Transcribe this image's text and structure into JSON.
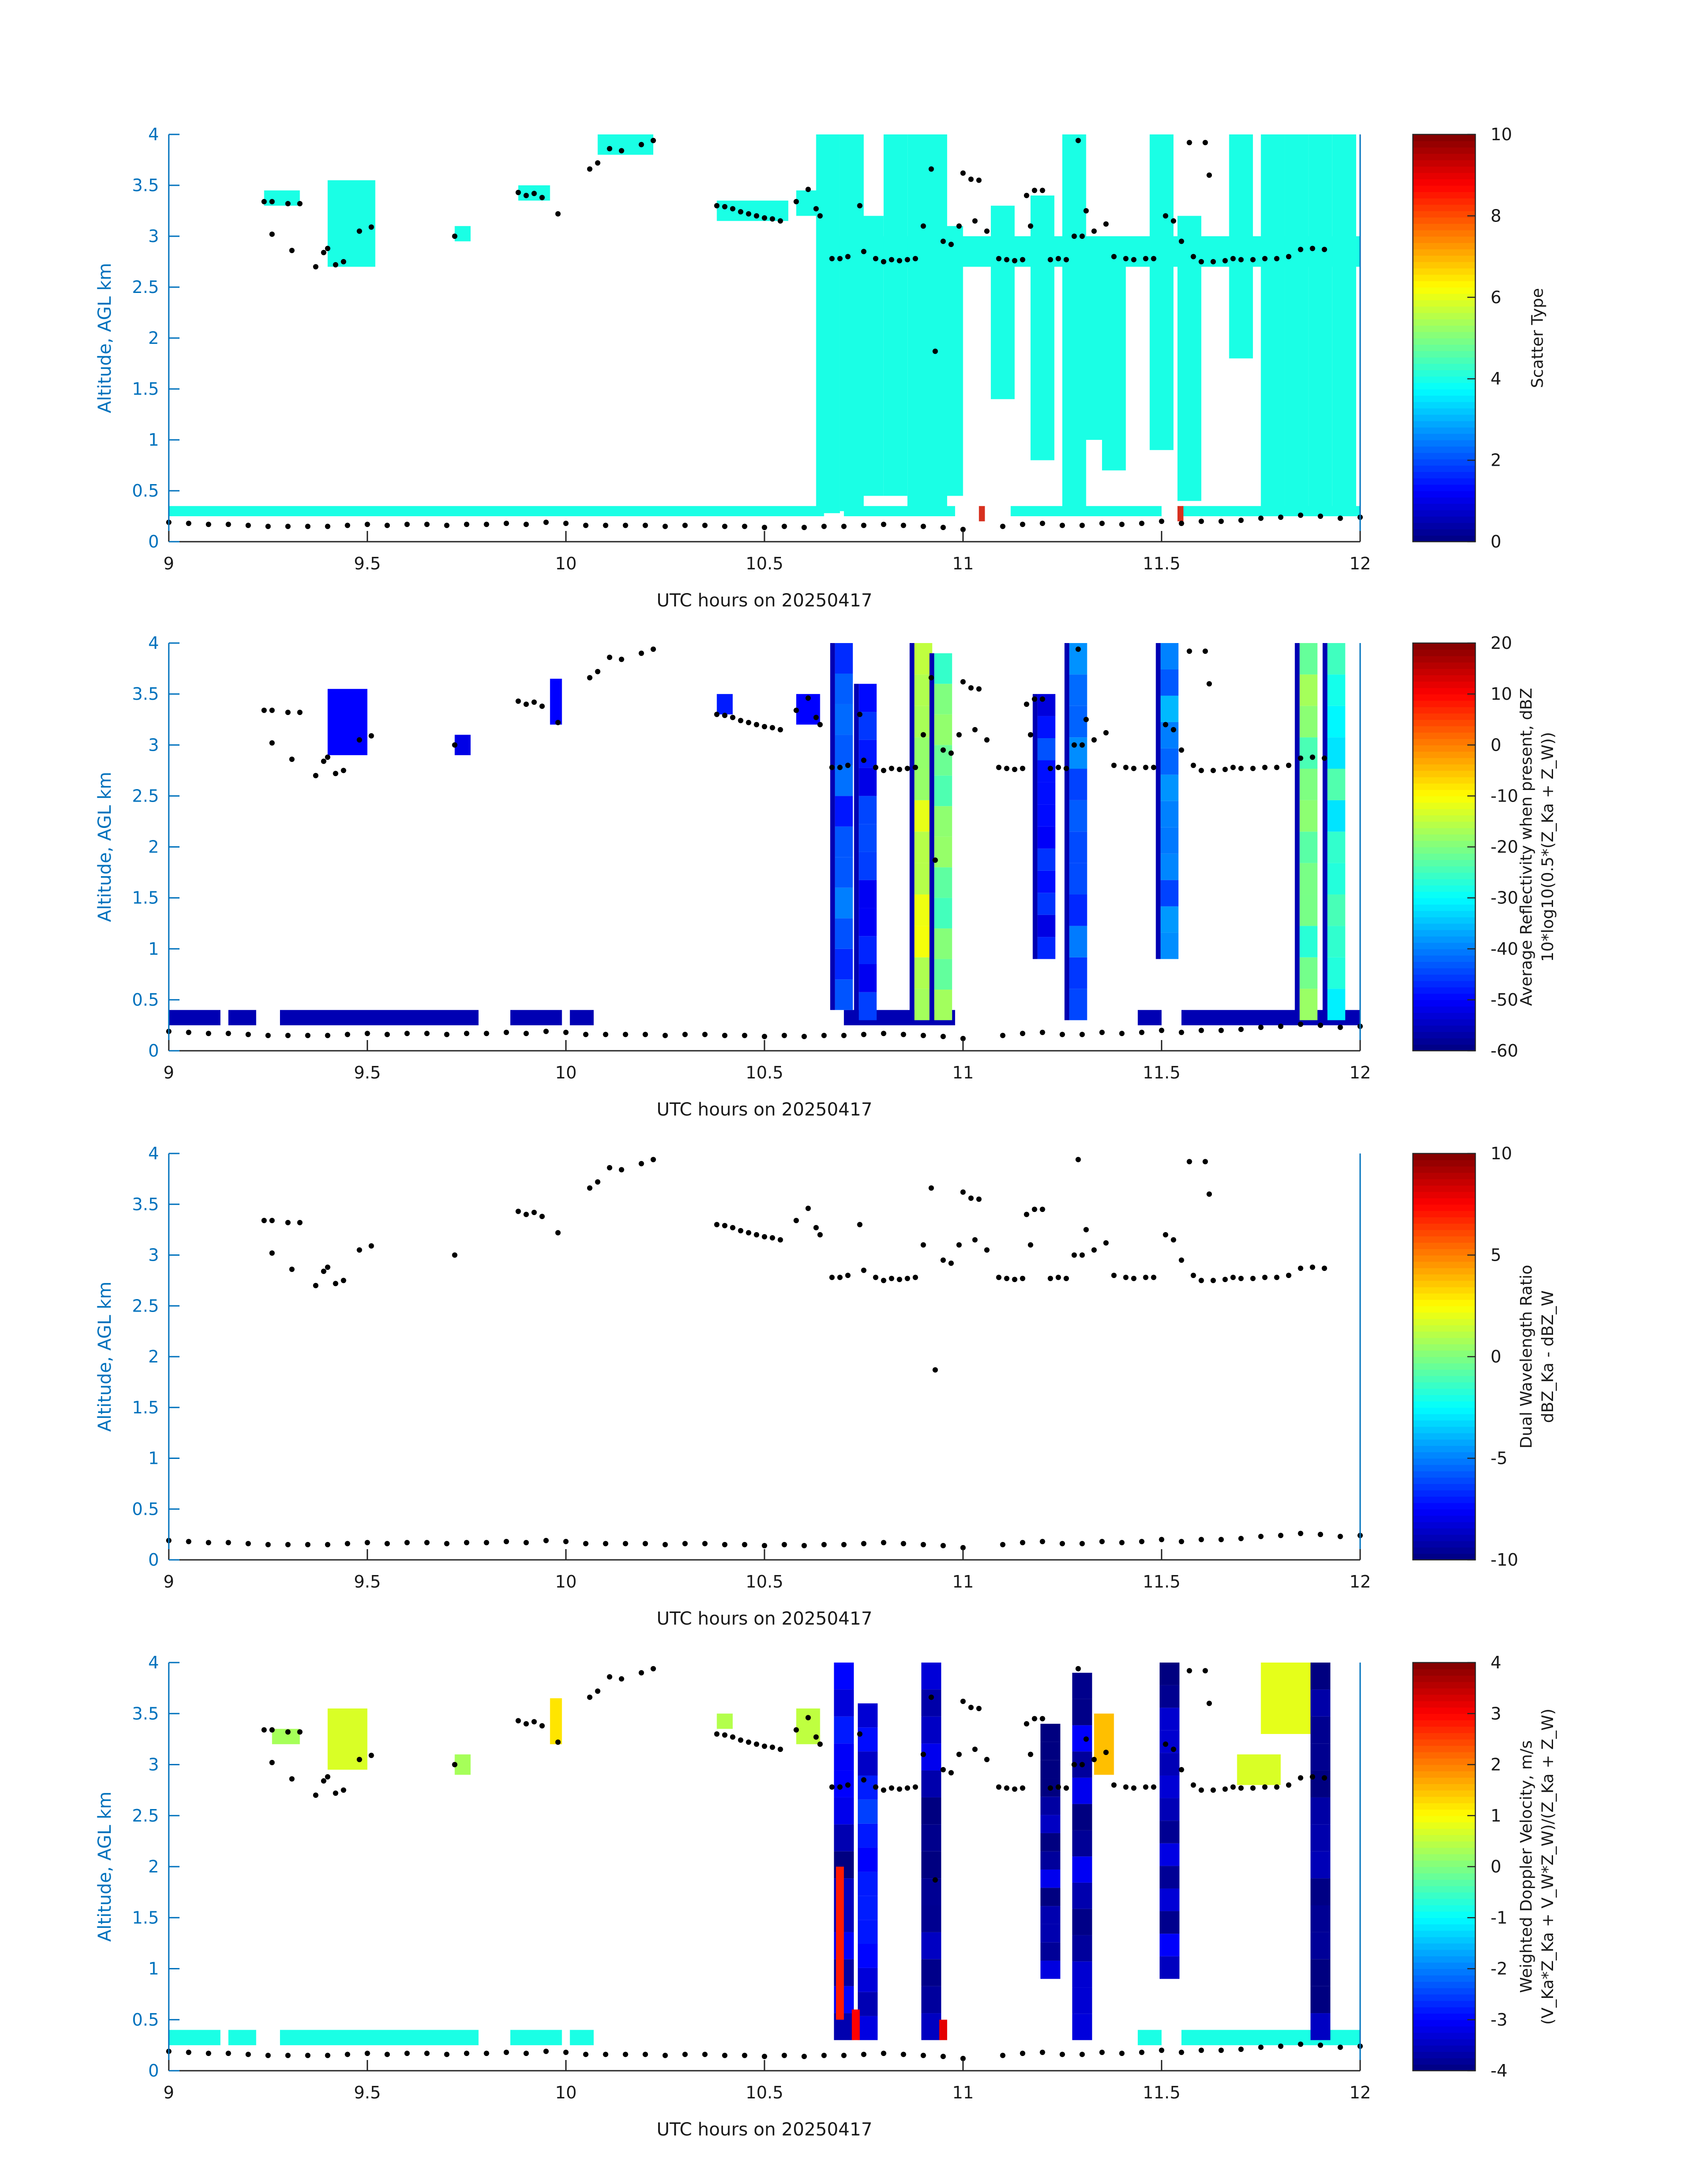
{
  "colors": {
    "axis_y": "#0072bd",
    "dots": "#000000",
    "band": "#2cf4d9",
    "redcell": "#d7301f"
  },
  "chart_data": [
    {
      "type": "heatmap",
      "panel": "scatter-type",
      "xlabel": "UTC hours on 20250417",
      "ylabel": "Altitude, AGL km",
      "xlim": [
        9,
        12
      ],
      "ylim": [
        0,
        4
      ],
      "xticks": [
        "9",
        "9.5",
        "10",
        "10.5",
        "11",
        "11.5",
        "12"
      ],
      "yticks": [
        "0",
        "0.5",
        "1",
        "1.5",
        "2",
        "2.5",
        "3",
        "3.5",
        "4"
      ],
      "colorbar": {
        "label_lines": [
          "Scatter Type"
        ],
        "ticks": [
          "0",
          "2",
          "4",
          "6",
          "8",
          "10"
        ],
        "range": [
          0,
          10
        ]
      },
      "colormap": "jet"
    },
    {
      "type": "heatmap",
      "panel": "reflectivity",
      "xlabel": "UTC hours on 20250417",
      "ylabel": "Altitude, AGL km",
      "xlim": [
        9,
        12
      ],
      "ylim": [
        0,
        4
      ],
      "xticks": [
        "9",
        "9.5",
        "10",
        "10.5",
        "11",
        "11.5",
        "12"
      ],
      "yticks": [
        "0",
        "0.5",
        "1",
        "1.5",
        "2",
        "2.5",
        "3",
        "3.5",
        "4"
      ],
      "colorbar": {
        "label_lines": [
          "Average Reflectivity when present, dBZ",
          "10*log10(0.5*(Z_Ka + Z_W))"
        ],
        "ticks": [
          "-60",
          "-50",
          "-40",
          "-30",
          "-20",
          "-10",
          "0",
          "10",
          "20"
        ],
        "range": [
          -60,
          20
        ]
      },
      "colormap": "jet"
    },
    {
      "type": "heatmap",
      "panel": "dual-wavelength-ratio",
      "xlabel": "UTC hours on 20250417",
      "ylabel": "Altitude, AGL km",
      "xlim": [
        9,
        12
      ],
      "ylim": [
        0,
        4
      ],
      "xticks": [
        "9",
        "9.5",
        "10",
        "10.5",
        "11",
        "11.5",
        "12"
      ],
      "yticks": [
        "0",
        "0.5",
        "1",
        "1.5",
        "2",
        "2.5",
        "3",
        "3.5",
        "4"
      ],
      "colorbar": {
        "label_lines": [
          "Dual Wavelength Ratio",
          "dBZ_Ka - dBZ_W"
        ],
        "ticks": [
          "-10",
          "-5",
          "0",
          "5",
          "10"
        ],
        "range": [
          -10,
          10
        ]
      },
      "colormap": "jet"
    },
    {
      "type": "heatmap",
      "panel": "doppler-velocity",
      "xlabel": "UTC hours on 20250417",
      "ylabel": "Altitude, AGL km",
      "xlim": [
        9,
        12
      ],
      "ylim": [
        0,
        4
      ],
      "xticks": [
        "9",
        "9.5",
        "10",
        "10.5",
        "11",
        "11.5",
        "12"
      ],
      "yticks": [
        "0",
        "0.5",
        "1",
        "1.5",
        "2",
        "2.5",
        "3",
        "3.5",
        "4"
      ],
      "colorbar": {
        "label_lines": [
          "Weighted Doppler Velocity, m/s",
          "(V_Ka*Z_Ka + V_W*Z_W)/(Z_Ka + Z_W)"
        ],
        "ticks": [
          "-4",
          "-3",
          "-2",
          "-1",
          "0",
          "1",
          "2",
          "3",
          "4"
        ],
        "range": [
          -4,
          4
        ]
      },
      "colormap": "jet"
    }
  ],
  "features": {
    "cloud_base_points": [
      [
        9.0,
        0.19
      ],
      [
        9.05,
        0.18
      ],
      [
        9.1,
        0.17
      ],
      [
        9.15,
        0.17
      ],
      [
        9.2,
        0.16
      ],
      [
        9.25,
        0.15
      ],
      [
        9.3,
        0.15
      ],
      [
        9.35,
        0.15
      ],
      [
        9.4,
        0.15
      ],
      [
        9.45,
        0.16
      ],
      [
        9.5,
        0.17
      ],
      [
        9.55,
        0.16
      ],
      [
        9.6,
        0.17
      ],
      [
        9.65,
        0.17
      ],
      [
        9.7,
        0.16
      ],
      [
        9.75,
        0.17
      ],
      [
        9.8,
        0.17
      ],
      [
        9.85,
        0.18
      ],
      [
        9.9,
        0.17
      ],
      [
        9.95,
        0.19
      ],
      [
        10.0,
        0.18
      ],
      [
        10.05,
        0.16
      ],
      [
        10.1,
        0.16
      ],
      [
        10.15,
        0.16
      ],
      [
        10.2,
        0.16
      ],
      [
        10.25,
        0.15
      ],
      [
        10.3,
        0.16
      ],
      [
        10.35,
        0.16
      ],
      [
        10.4,
        0.15
      ],
      [
        10.45,
        0.15
      ],
      [
        10.5,
        0.14
      ],
      [
        10.55,
        0.15
      ],
      [
        10.6,
        0.14
      ],
      [
        10.65,
        0.15
      ],
      [
        10.7,
        0.15
      ],
      [
        10.75,
        0.16
      ],
      [
        10.8,
        0.17
      ],
      [
        10.85,
        0.16
      ],
      [
        10.9,
        0.15
      ],
      [
        10.95,
        0.14
      ],
      [
        11.0,
        0.12
      ],
      [
        11.1,
        0.15
      ],
      [
        11.15,
        0.17
      ],
      [
        11.2,
        0.18
      ],
      [
        11.25,
        0.16
      ],
      [
        11.3,
        0.16
      ],
      [
        11.35,
        0.18
      ],
      [
        11.4,
        0.17
      ],
      [
        11.45,
        0.18
      ],
      [
        11.5,
        0.2
      ],
      [
        11.55,
        0.18
      ],
      [
        11.6,
        0.2
      ],
      [
        11.65,
        0.2
      ],
      [
        11.7,
        0.21
      ],
      [
        11.75,
        0.23
      ],
      [
        11.8,
        0.24
      ],
      [
        11.85,
        0.26
      ],
      [
        11.9,
        0.25
      ],
      [
        11.95,
        0.23
      ],
      [
        12.0,
        0.24
      ]
    ],
    "cloud_top_points": [
      [
        9.24,
        3.34
      ],
      [
        9.26,
        3.34
      ],
      [
        9.3,
        3.32
      ],
      [
        9.33,
        3.32
      ],
      [
        9.26,
        3.02
      ],
      [
        9.31,
        2.86
      ],
      [
        9.37,
        2.7
      ],
      [
        9.39,
        2.84
      ],
      [
        9.4,
        2.88
      ],
      [
        9.42,
        2.72
      ],
      [
        9.44,
        2.75
      ],
      [
        9.48,
        3.05
      ],
      [
        9.51,
        3.09
      ],
      [
        9.72,
        3.0
      ],
      [
        9.88,
        3.43
      ],
      [
        9.9,
        3.4
      ],
      [
        9.92,
        3.42
      ],
      [
        9.94,
        3.38
      ],
      [
        9.98,
        3.22
      ],
      [
        10.06,
        3.66
      ],
      [
        10.08,
        3.72
      ],
      [
        10.11,
        3.86
      ],
      [
        10.14,
        3.84
      ],
      [
        10.19,
        3.9
      ],
      [
        10.22,
        3.94
      ],
      [
        10.38,
        3.3
      ],
      [
        10.4,
        3.29
      ],
      [
        10.42,
        3.27
      ],
      [
        10.44,
        3.24
      ],
      [
        10.46,
        3.22
      ],
      [
        10.48,
        3.2
      ],
      [
        10.5,
        3.18
      ],
      [
        10.52,
        3.17
      ],
      [
        10.54,
        3.15
      ],
      [
        10.58,
        3.34
      ],
      [
        10.61,
        3.46
      ],
      [
        10.63,
        3.27
      ],
      [
        10.64,
        3.2
      ],
      [
        10.67,
        2.78
      ],
      [
        10.69,
        2.78
      ],
      [
        10.71,
        2.8
      ],
      [
        10.74,
        3.3
      ],
      [
        10.75,
        2.85
      ],
      [
        10.78,
        2.78
      ],
      [
        10.8,
        2.75
      ],
      [
        10.82,
        2.77
      ],
      [
        10.84,
        2.76
      ],
      [
        10.86,
        2.77
      ],
      [
        10.88,
        2.78
      ],
      [
        10.9,
        3.1
      ],
      [
        10.92,
        3.66
      ],
      [
        10.93,
        1.87
      ],
      [
        10.95,
        2.95
      ],
      [
        10.97,
        2.92
      ],
      [
        10.99,
        3.1
      ],
      [
        11.0,
        3.62
      ],
      [
        11.02,
        3.56
      ],
      [
        11.03,
        3.15
      ],
      [
        11.04,
        3.55
      ],
      [
        11.06,
        3.05
      ],
      [
        11.09,
        2.78
      ],
      [
        11.11,
        2.77
      ],
      [
        11.13,
        2.76
      ],
      [
        11.15,
        2.77
      ],
      [
        11.16,
        3.4
      ],
      [
        11.17,
        3.1
      ],
      [
        11.18,
        3.45
      ],
      [
        11.2,
        3.45
      ],
      [
        11.22,
        2.77
      ],
      [
        11.24,
        2.78
      ],
      [
        11.26,
        2.77
      ],
      [
        11.28,
        3.0
      ],
      [
        11.29,
        3.94
      ],
      [
        11.3,
        3.0
      ],
      [
        11.31,
        3.25
      ],
      [
        11.33,
        3.05
      ],
      [
        11.36,
        3.12
      ],
      [
        11.38,
        2.8
      ],
      [
        11.41,
        2.78
      ],
      [
        11.43,
        2.77
      ],
      [
        11.46,
        2.78
      ],
      [
        11.48,
        2.78
      ],
      [
        11.51,
        3.2
      ],
      [
        11.53,
        3.15
      ],
      [
        11.55,
        2.95
      ],
      [
        11.57,
        3.92
      ],
      [
        11.58,
        2.8
      ],
      [
        11.6,
        2.75
      ],
      [
        11.61,
        3.92
      ],
      [
        11.62,
        3.6
      ],
      [
        11.63,
        2.75
      ],
      [
        11.66,
        2.76
      ],
      [
        11.68,
        2.78
      ],
      [
        11.7,
        2.77
      ],
      [
        11.73,
        2.77
      ],
      [
        11.76,
        2.78
      ],
      [
        11.79,
        2.78
      ],
      [
        11.82,
        2.8
      ],
      [
        11.85,
        2.87
      ],
      [
        11.88,
        2.88
      ],
      [
        11.91,
        2.87
      ]
    ],
    "scatter_type_columns": [
      [
        10.66,
        0.28,
        4.0
      ],
      [
        10.72,
        0.3,
        4.0
      ],
      [
        10.77,
        0.45,
        3.2
      ],
      [
        10.83,
        0.45,
        4.0
      ],
      [
        10.89,
        0.3,
        4.0
      ],
      [
        10.93,
        0.3,
        4.0
      ],
      [
        10.97,
        0.45,
        3.1
      ],
      [
        11.1,
        1.4,
        3.3
      ],
      [
        11.2,
        0.8,
        3.4
      ],
      [
        11.28,
        0.3,
        4.0
      ],
      [
        11.33,
        1.0,
        3.0
      ],
      [
        11.38,
        0.7,
        2.8
      ],
      [
        11.5,
        0.9,
        4.0
      ],
      [
        11.57,
        0.4,
        3.2
      ],
      [
        11.7,
        1.8,
        4.0
      ],
      [
        11.78,
        0.3,
        4.0
      ],
      [
        11.84,
        0.3,
        4.0
      ],
      [
        11.9,
        0.3,
        4.0
      ],
      [
        11.96,
        0.3,
        4.0
      ]
    ],
    "reflectivity_columns": [
      [
        10.7,
        0.4,
        4.0,
        -45
      ],
      [
        10.76,
        0.3,
        3.6,
        -48
      ],
      [
        10.9,
        0.3,
        4.0,
        -15
      ],
      [
        10.95,
        0.3,
        3.9,
        -22
      ],
      [
        11.21,
        0.9,
        3.5,
        -48
      ],
      [
        11.29,
        0.3,
        4.0,
        -42
      ],
      [
        11.52,
        0.9,
        4.0,
        -40
      ],
      [
        11.87,
        0.3,
        4.0,
        -22
      ],
      [
        11.94,
        0.3,
        4.0,
        -28
      ]
    ],
    "doppler_columns": [
      [
        10.7,
        0.3,
        4.0,
        -3.4
      ],
      [
        10.76,
        0.3,
        3.6,
        -3.0
      ],
      [
        10.92,
        0.3,
        4.0,
        -3.7
      ],
      [
        11.22,
        0.9,
        3.4,
        -3.6
      ],
      [
        11.3,
        0.3,
        3.9,
        -3.6
      ],
      [
        11.52,
        0.9,
        4.0,
        -3.6
      ],
      [
        11.9,
        0.3,
        4.0,
        -3.8
      ]
    ]
  }
}
